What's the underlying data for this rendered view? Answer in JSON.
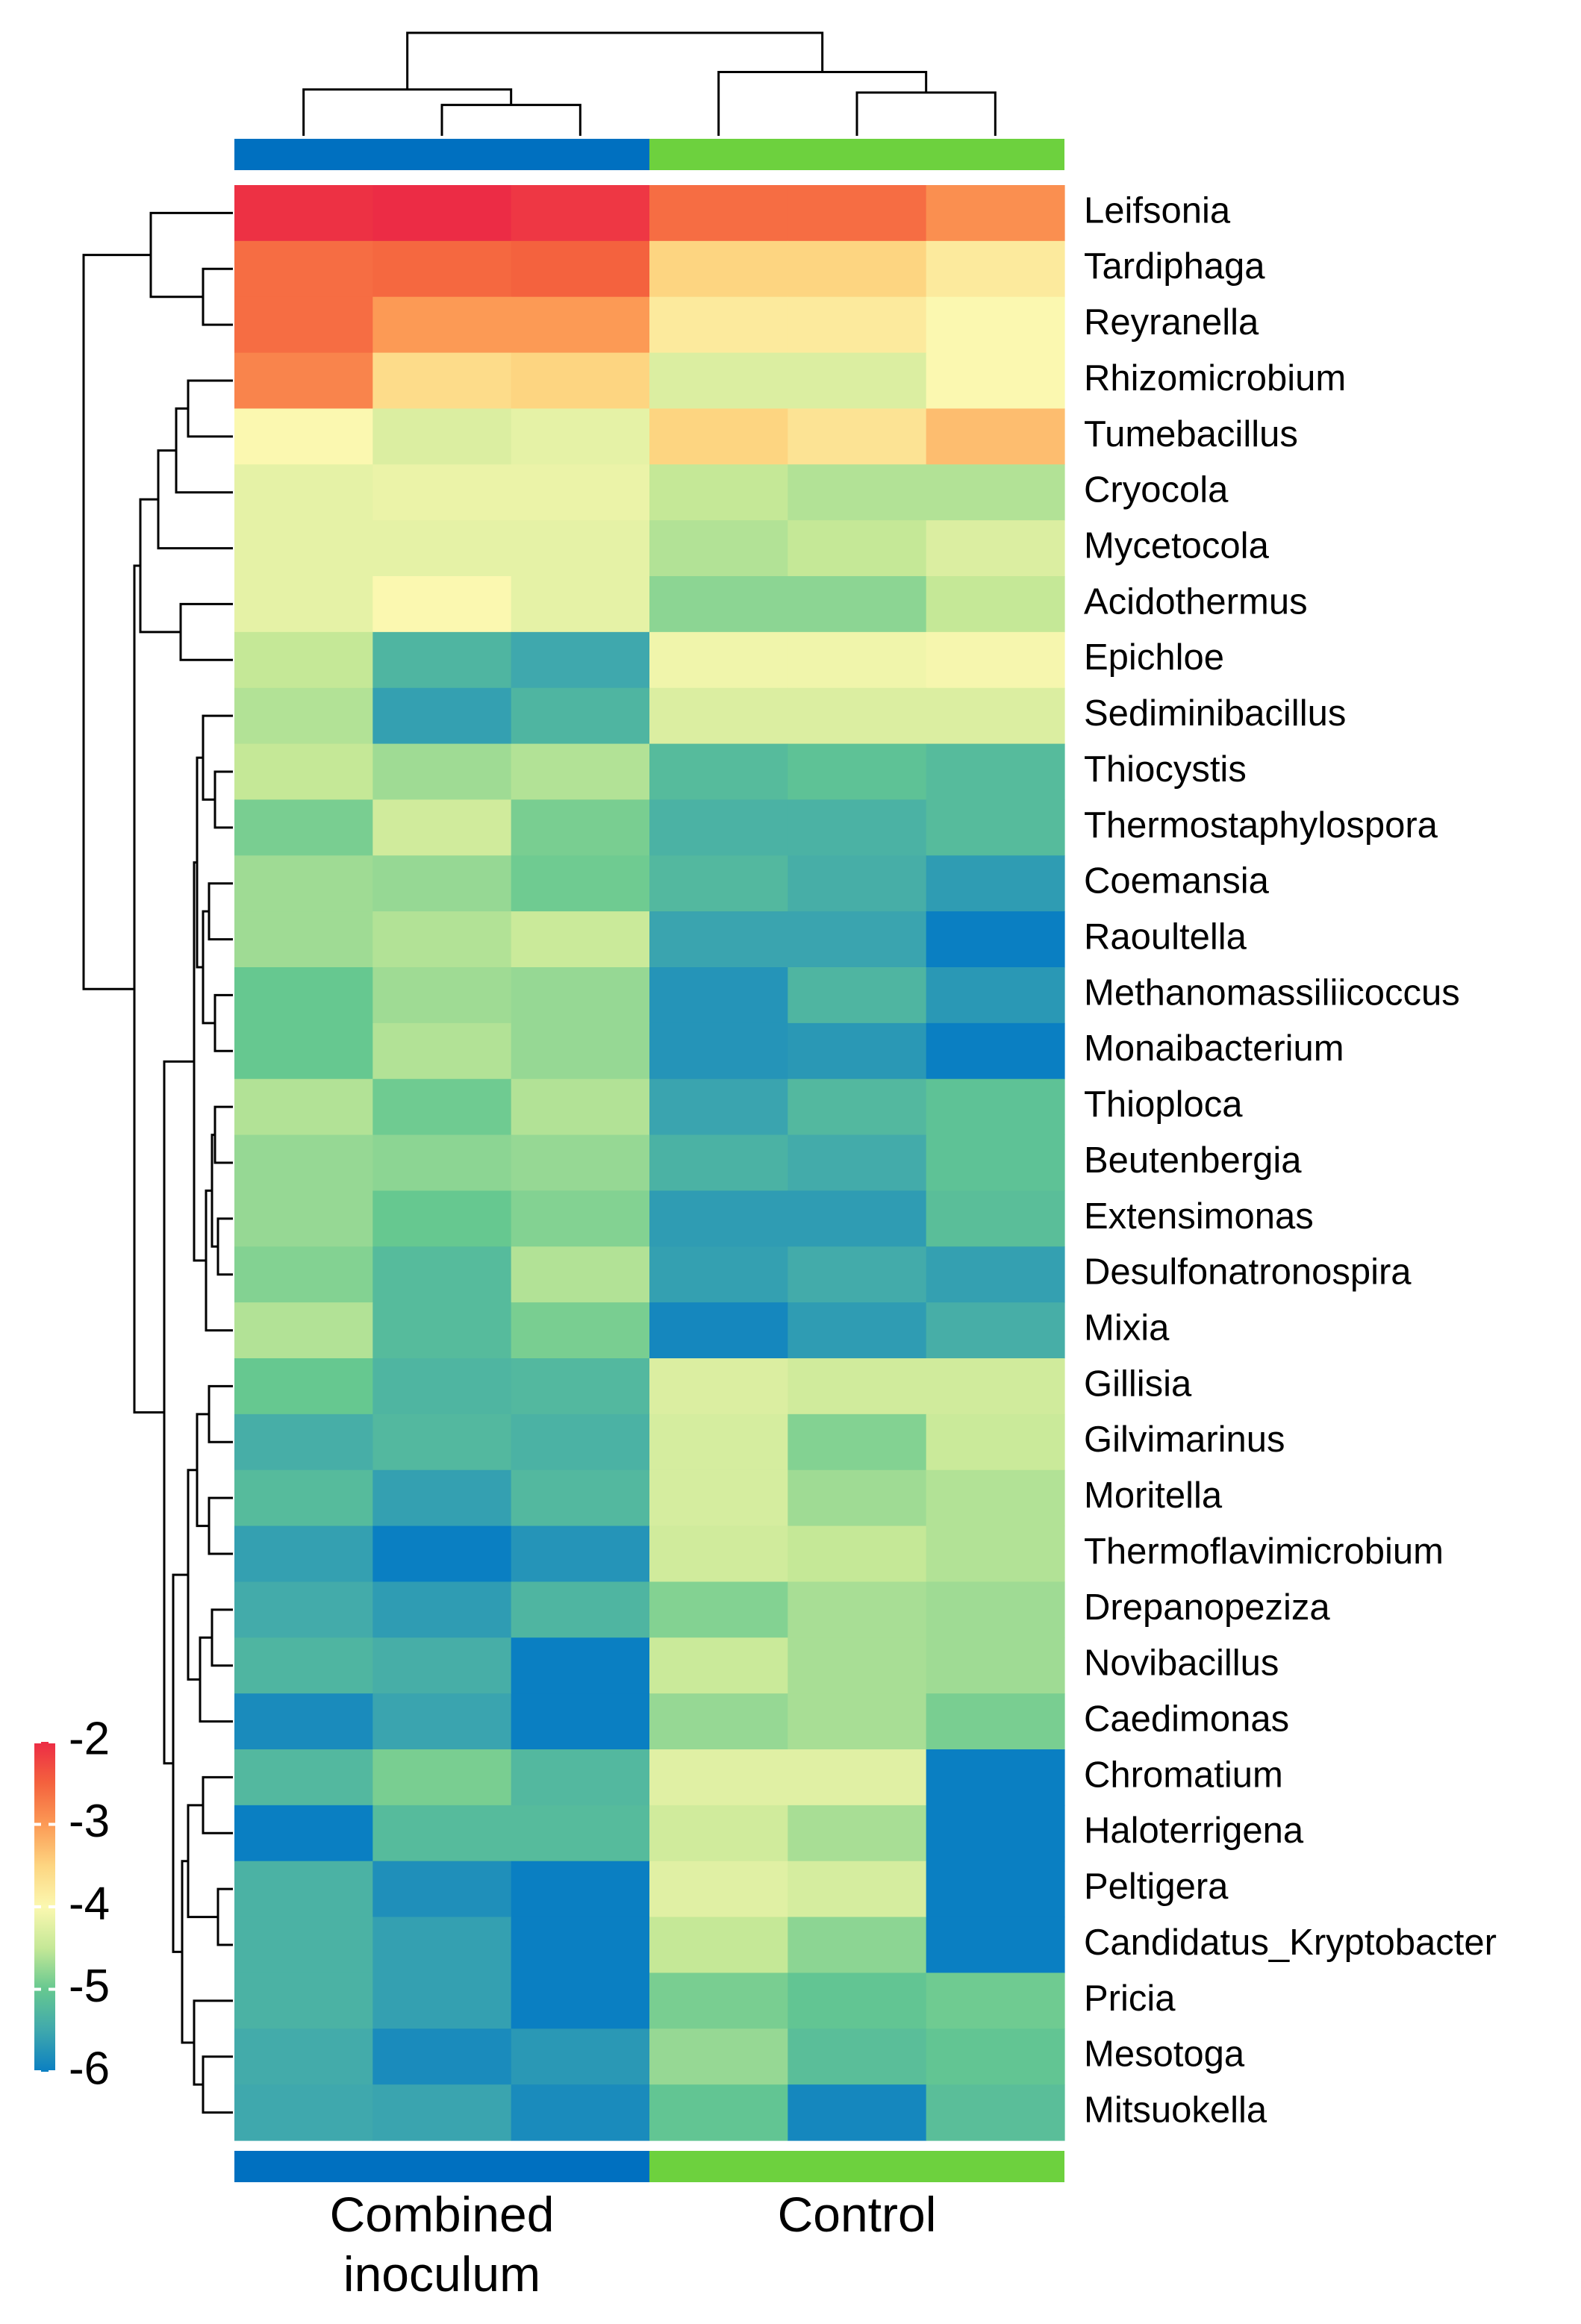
{
  "chart_data": {
    "type": "heatmap",
    "title": "",
    "color_scale": {
      "min": -6,
      "max": -2,
      "stops": [
        {
          "value": -6,
          "color": "#0a7fc2"
        },
        {
          "value": -5.5,
          "color": "#3fa8ad"
        },
        {
          "value": -5,
          "color": "#66c890"
        },
        {
          "value": -4.5,
          "color": "#c5e897"
        },
        {
          "value": -4,
          "color": "#fbf8b0"
        },
        {
          "value": -3.5,
          "color": "#fdd581"
        },
        {
          "value": -3,
          "color": "#fc9a55"
        },
        {
          "value": -2.5,
          "color": "#f4623e"
        },
        {
          "value": -2,
          "color": "#ec2c45"
        }
      ]
    },
    "legend": {
      "ticks": [
        -2,
        -3,
        -4,
        -5,
        -6
      ],
      "tick_labels": [
        "-2",
        "-3",
        "-4",
        "-5",
        "-6"
      ],
      "placement": "bottom-left"
    },
    "groups": [
      {
        "name": "Combined\ninoculum",
        "label_lines": [
          "Combined",
          "inoculum"
        ],
        "color": "#0070c0",
        "columns": [
          0,
          1,
          2
        ]
      },
      {
        "name": "Control",
        "label_lines": [
          "Control"
        ],
        "color": "#6dd13e",
        "columns": [
          3,
          4,
          5
        ]
      }
    ],
    "rows": [
      "Leifsonia",
      "Tardiphaga",
      "Reyranella",
      "Rhizomicrobium",
      "Tumebacillus",
      "Cryocola",
      "Mycetocola",
      "Acidothermus",
      "Epichloe",
      "Sediminibacillus",
      "Thiocystis",
      "Thermostaphylospora",
      "Coemansia",
      "Raoultella",
      "Methanomassiliicoccus",
      "Monaibacterium",
      "Thioploca",
      "Beutenbergia",
      "Extensimonas",
      "Desulfonatronospira",
      "Mixia",
      "Gillisia",
      "Gilvimarinus",
      "Moritella",
      "Thermoflavimicrobium",
      "Drepanopeziza",
      "Novibacillus",
      "Caedimonas",
      "Chromatium",
      "Haloterrigena",
      "Peltigera",
      "Candidatus_Kryptobacter",
      "Pricia",
      "Mesotoga",
      "Mitsuokella"
    ],
    "values": [
      [
        -2.05,
        -2.0,
        -2.1,
        -2.6,
        -2.6,
        -2.9
      ],
      [
        -2.6,
        -2.55,
        -2.5,
        -3.5,
        -3.5,
        -3.8
      ],
      [
        -2.6,
        -3.0,
        -3.0,
        -3.8,
        -3.8,
        -4.0
      ],
      [
        -2.8,
        -3.6,
        -3.5,
        -4.3,
        -4.3,
        -4.0
      ],
      [
        -4.0,
        -4.3,
        -4.2,
        -3.5,
        -3.7,
        -3.3
      ],
      [
        -4.2,
        -4.15,
        -4.15,
        -4.5,
        -4.6,
        -4.6
      ],
      [
        -4.2,
        -4.2,
        -4.2,
        -4.6,
        -4.5,
        -4.3
      ],
      [
        -4.2,
        -4.0,
        -4.2,
        -4.8,
        -4.8,
        -4.5
      ],
      [
        -4.5,
        -5.3,
        -5.5,
        -4.1,
        -4.1,
        -4.05
      ],
      [
        -4.6,
        -5.6,
        -5.3,
        -4.3,
        -4.3,
        -4.3
      ],
      [
        -4.5,
        -4.7,
        -4.6,
        -5.2,
        -5.1,
        -5.2
      ],
      [
        -4.9,
        -4.4,
        -4.9,
        -5.35,
        -5.35,
        -5.2
      ],
      [
        -4.7,
        -4.75,
        -4.95,
        -5.25,
        -5.4,
        -5.65
      ],
      [
        -4.7,
        -4.6,
        -4.45,
        -5.55,
        -5.55,
        -6.0
      ],
      [
        -5.0,
        -4.7,
        -4.75,
        -5.75,
        -5.3,
        -5.7
      ],
      [
        -5.0,
        -4.6,
        -4.75,
        -5.75,
        -5.7,
        -6.0
      ],
      [
        -4.6,
        -4.95,
        -4.6,
        -5.55,
        -5.25,
        -5.1
      ],
      [
        -4.75,
        -4.8,
        -4.75,
        -5.35,
        -5.45,
        -5.1
      ],
      [
        -4.75,
        -5.0,
        -4.85,
        -5.65,
        -5.65,
        -5.15
      ],
      [
        -4.85,
        -5.2,
        -4.6,
        -5.6,
        -5.45,
        -5.6
      ],
      [
        -4.6,
        -5.2,
        -4.9,
        -5.9,
        -5.65,
        -5.4
      ],
      [
        -5.0,
        -5.3,
        -5.25,
        -4.3,
        -4.4,
        -4.4
      ],
      [
        -5.4,
        -5.25,
        -5.35,
        -4.35,
        -4.85,
        -4.45
      ],
      [
        -5.2,
        -5.6,
        -5.25,
        -4.35,
        -4.7,
        -4.6
      ],
      [
        -5.6,
        -6.0,
        -5.75,
        -4.4,
        -4.5,
        -4.6
      ],
      [
        -5.45,
        -5.65,
        -5.3,
        -4.85,
        -4.65,
        -4.7
      ],
      [
        -5.3,
        -5.4,
        -6.0,
        -4.45,
        -4.65,
        -4.7
      ],
      [
        -5.85,
        -5.55,
        -6.0,
        -4.75,
        -4.65,
        -4.9
      ],
      [
        -5.25,
        -4.9,
        -5.25,
        -4.25,
        -4.25,
        -6.0
      ],
      [
        -6.0,
        -5.2,
        -5.2,
        -4.4,
        -4.65,
        -6.0
      ],
      [
        -5.35,
        -5.8,
        -6.0,
        -4.25,
        -4.35,
        -6.0
      ],
      [
        -5.35,
        -5.6,
        -6.0,
        -4.5,
        -4.8,
        -6.0
      ],
      [
        -5.35,
        -5.6,
        -6.0,
        -4.9,
        -5.05,
        -4.95
      ],
      [
        -5.45,
        -5.85,
        -5.7,
        -4.75,
        -5.15,
        -5.05
      ],
      [
        -5.5,
        -5.55,
        -5.85,
        -5.05,
        -5.9,
        -5.15
      ]
    ],
    "row_dendrogram": {
      "leaves": 35,
      "merges": [
        [
          0,
          -2,
          -3,
          0.2
        ],
        [
          1,
          0,
          0,
          0.38
        ],
        [
          2,
          -1,
          1,
          0.55
        ],
        [
          3,
          -4,
          -5,
          0.3
        ],
        [
          4,
          3,
          -6,
          0.38
        ],
        [
          5,
          -8,
          -9,
          0.35
        ],
        [
          6,
          4,
          -7,
          0.5
        ],
        [
          7,
          6,
          5,
          0.62
        ],
        [
          8,
          -11,
          -12,
          0.12
        ],
        [
          9,
          -10,
          8,
          0.2
        ],
        [
          10,
          -13,
          -14,
          0.16
        ],
        [
          11,
          -15,
          -16,
          0.12
        ],
        [
          12,
          10,
          11,
          0.2
        ],
        [
          13,
          9,
          12,
          0.24
        ],
        [
          14,
          -17,
          -18,
          0.12
        ],
        [
          15,
          -19,
          -20,
          0.1
        ],
        [
          16,
          14,
          15,
          0.14
        ],
        [
          17,
          16,
          -21,
          0.18
        ],
        [
          18,
          13,
          17,
          0.26
        ],
        [
          19,
          -22,
          -23,
          0.16
        ],
        [
          20,
          -24,
          -25,
          0.16
        ],
        [
          21,
          19,
          20,
          0.24
        ],
        [
          22,
          -26,
          -27,
          0.14
        ],
        [
          23,
          22,
          -28,
          0.22
        ],
        [
          24,
          21,
          23,
          0.3
        ],
        [
          25,
          -29,
          -30,
          0.2
        ],
        [
          26,
          -31,
          -32,
          0.1
        ],
        [
          27,
          25,
          26,
          0.3
        ],
        [
          28,
          -34,
          -35,
          0.2
        ],
        [
          29,
          -33,
          28,
          0.26
        ],
        [
          30,
          27,
          29,
          0.34
        ],
        [
          31,
          24,
          30,
          0.4
        ],
        [
          32,
          18,
          31,
          0.46
        ],
        [
          33,
          7,
          32,
          0.66
        ],
        [
          34,
          2,
          33,
          1.0
        ]
      ]
    },
    "column_dendrogram": {
      "leaves": 6,
      "merges": [
        [
          0,
          -2,
          -3,
          0.3
        ],
        [
          1,
          -1,
          0,
          0.45
        ],
        [
          2,
          -5,
          -6,
          0.42
        ],
        [
          3,
          -4,
          2,
          0.62
        ],
        [
          4,
          1,
          3,
          1.0
        ]
      ]
    }
  }
}
